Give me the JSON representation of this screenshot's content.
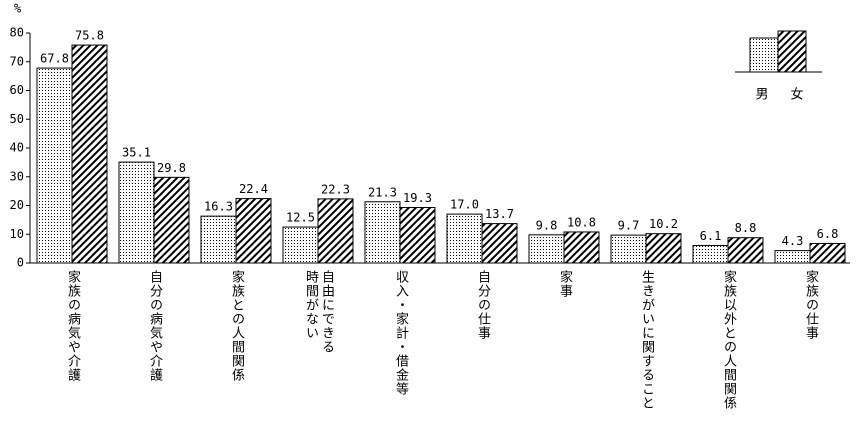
{
  "chart_data": {
    "type": "bar",
    "ylabel": "%",
    "categories": [
      "家族の病気や介護",
      "自分の病気や介護",
      "家族との人間関係",
      "自由にできる\n時間がない",
      "収入・家計・借金等",
      "自分の仕事",
      "家事",
      "生きがいに関すること",
      "家族以外との人間関係",
      "家族の仕事"
    ],
    "series": [
      {
        "name": "男",
        "color": "#000000",
        "pattern": "dots",
        "values": [
          67.8,
          35.1,
          16.3,
          12.5,
          21.3,
          17.0,
          9.8,
          9.7,
          6.1,
          4.3
        ],
        "value_labels": [
          "67.8",
          "35.1",
          "16.3",
          "12.5",
          "21.3",
          "17.0",
          "9.8",
          "9.7",
          "6.1",
          "4.3"
        ]
      },
      {
        "name": "女",
        "color": "#000000",
        "pattern": "hatch",
        "values": [
          75.8,
          29.8,
          22.4,
          22.3,
          19.3,
          13.7,
          10.8,
          10.2,
          8.8,
          6.8
        ],
        "value_labels": [
          "75.8",
          "29.8",
          "22.4",
          "22.3",
          "19.3",
          "13.7",
          "10.8",
          "10.2",
          "8.8",
          "6.8"
        ]
      }
    ],
    "ylim": [
      0,
      80
    ],
    "yticks": [
      0,
      10,
      20,
      30,
      40,
      50,
      60,
      70,
      80
    ],
    "grid": false,
    "legend": "upper right"
  }
}
